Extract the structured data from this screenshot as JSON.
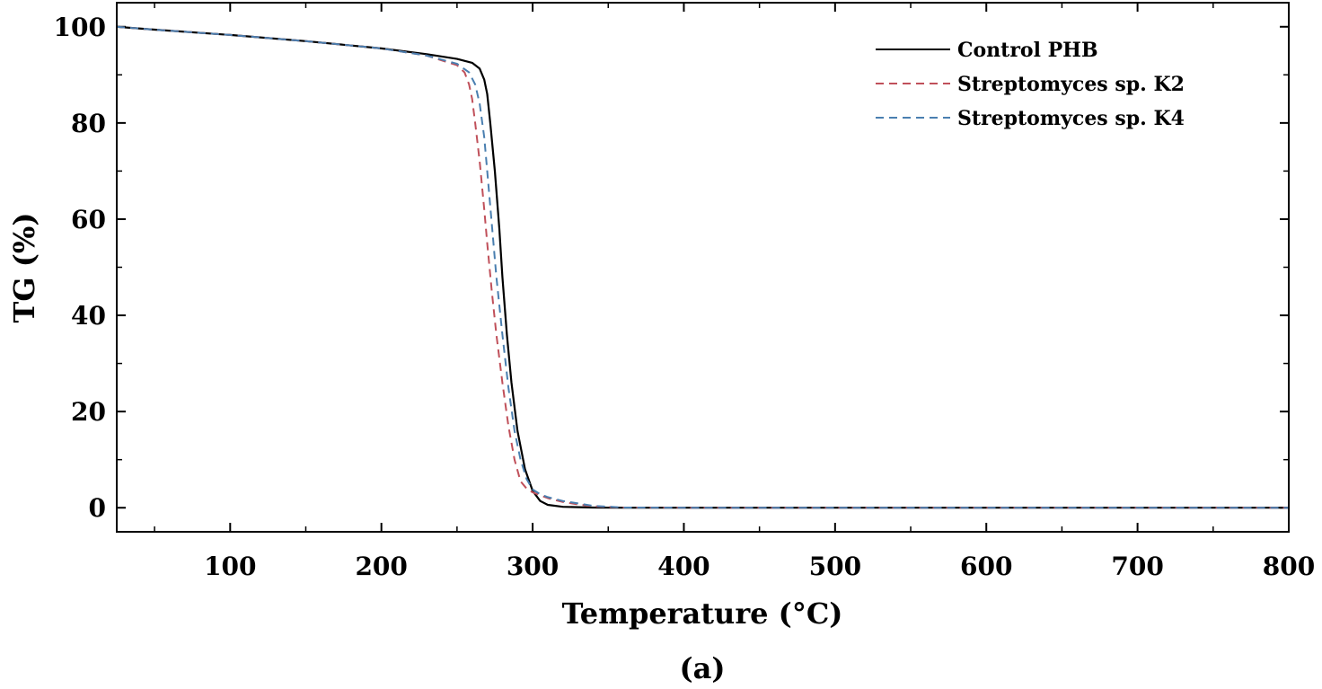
{
  "chart_data": {
    "type": "line",
    "title": "",
    "xlabel": "Temperature (°C)",
    "ylabel": "TG (%)",
    "caption": "(a)",
    "xlim": [
      25,
      800
    ],
    "ylim": [
      -5,
      105
    ],
    "xticks": [
      100,
      200,
      300,
      400,
      500,
      600,
      700,
      800
    ],
    "yticks": [
      0,
      20,
      40,
      60,
      80,
      100
    ],
    "grid": false,
    "legend_position": "top-right",
    "series": [
      {
        "name": "Control PHB",
        "color": "#000000",
        "style": "solid",
        "x": [
          25,
          50,
          100,
          150,
          200,
          230,
          250,
          260,
          265,
          268,
          270,
          272,
          275,
          278,
          280,
          283,
          286,
          290,
          295,
          300,
          305,
          310,
          320,
          340,
          360,
          400,
          500,
          600,
          700,
          800
        ],
        "y": [
          100,
          99.4,
          98.3,
          97.0,
          95.5,
          94.3,
          93.3,
          92.5,
          91.3,
          89.0,
          86.0,
          80.0,
          70.0,
          58.0,
          48.0,
          36.0,
          26.0,
          16.0,
          8.0,
          3.5,
          1.4,
          0.6,
          0.2,
          0.05,
          0,
          0,
          0,
          0,
          0,
          0
        ]
      },
      {
        "name": "Streptomyces sp. K2",
        "color": "#c0505a",
        "style": "dashed",
        "x": [
          25,
          50,
          100,
          150,
          200,
          230,
          250,
          255,
          258,
          260,
          262,
          265,
          268,
          270,
          273,
          276,
          280,
          284,
          288,
          292,
          296,
          300,
          305,
          310,
          320,
          330,
          340,
          360,
          400,
          500,
          600,
          700,
          800
        ],
        "y": [
          100,
          99.4,
          98.3,
          97.0,
          95.5,
          94.0,
          92.0,
          90.5,
          88.0,
          85.0,
          80.0,
          72.0,
          62.0,
          55.0,
          45.0,
          36.0,
          26.0,
          17.0,
          10.0,
          5.5,
          4.0,
          3.2,
          2.6,
          2.0,
          1.2,
          0.7,
          0.3,
          0.05,
          0,
          0,
          0,
          0,
          0
        ]
      },
      {
        "name": "Streptomyces sp. K4",
        "color": "#4a7fb0",
        "style": "dashed",
        "x": [
          25,
          50,
          100,
          150,
          200,
          230,
          250,
          258,
          262,
          265,
          268,
          270,
          273,
          276,
          280,
          284,
          288,
          292,
          296,
          300,
          305,
          310,
          320,
          330,
          340,
          360,
          400,
          500,
          600,
          700,
          800
        ],
        "y": [
          100,
          99.4,
          98.3,
          97.0,
          95.5,
          94.0,
          92.3,
          90.5,
          88.0,
          84.0,
          77.0,
          70.0,
          59.0,
          48.0,
          36.0,
          25.0,
          16.0,
          10.0,
          6.0,
          3.8,
          2.8,
          2.2,
          1.4,
          0.9,
          0.4,
          0.05,
          0,
          0,
          0,
          0,
          0
        ]
      }
    ]
  }
}
